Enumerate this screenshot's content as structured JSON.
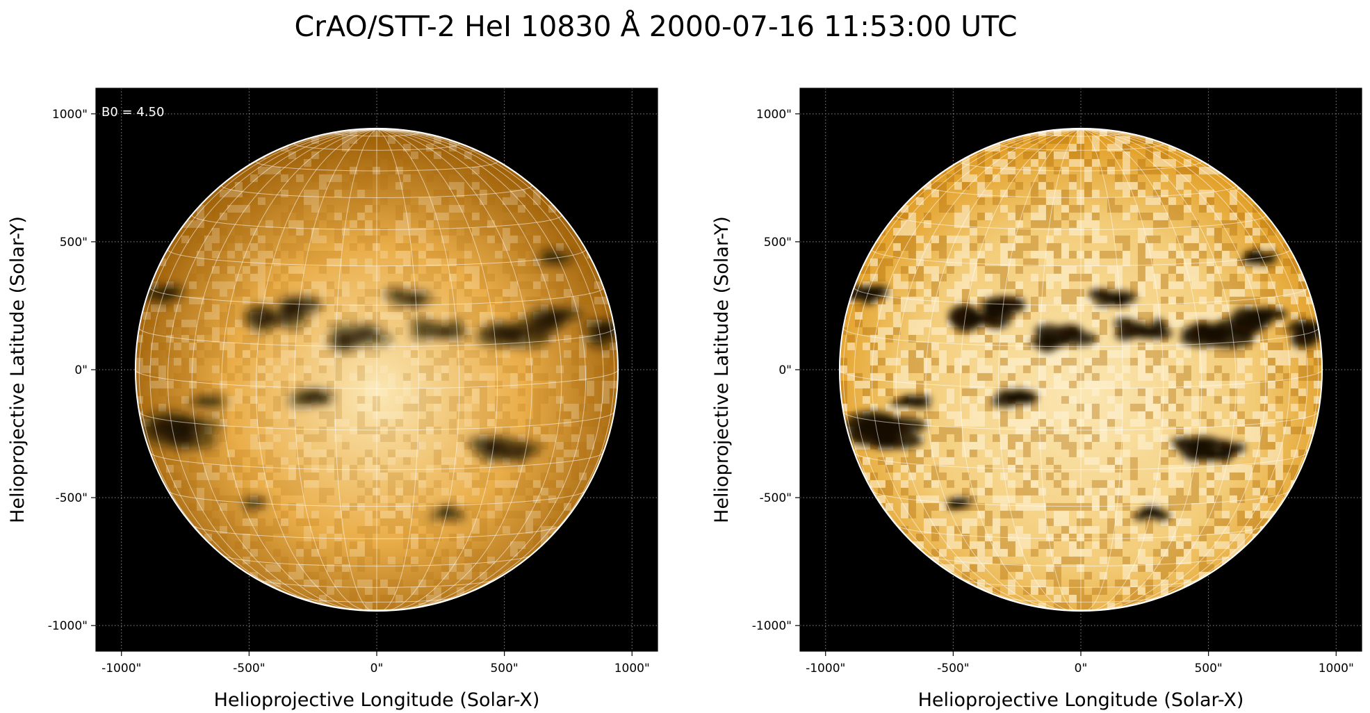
{
  "figure": {
    "title": "CrAO/STT-2 HeI 10830 Å 2000-07-16 11:53:00 UTC"
  },
  "palette": {
    "background": "#000000",
    "disk_bright": "#fbe7b4",
    "disk_mid": "#e09a1e",
    "disk_dark": "#9a5c05",
    "feature_dark": "#1a0c00",
    "limb": "#ffffff",
    "grid": "#ffffff"
  },
  "axes": {
    "xlabel": "Helioprojective Longitude (Solar-X)",
    "ylabel": "Helioprojective Latitude (Solar-Y)",
    "xticks": [
      "-1000\"",
      "-500\"",
      "0\"",
      "500\"",
      "1000\""
    ],
    "yticks": [
      "1000\"",
      "500\"",
      "0\"",
      "-500\"",
      "-1000\""
    ],
    "tick_values": [
      -1000,
      -500,
      0,
      500,
      1000
    ],
    "range_arcsec": [
      -1100,
      1100
    ],
    "grid": "dotted"
  },
  "panels": [
    {
      "name": "processed",
      "annotation": "B0 = 4.50",
      "contrast": "normal"
    },
    {
      "name": "enhanced",
      "annotation": "",
      "contrast": "high"
    }
  ],
  "solar_disk": {
    "radius_arcsec": 945,
    "b0_deg": 4.5,
    "grid_spacing_deg": 10
  },
  "dark_features": [
    {
      "lon": -25,
      "lat": 18,
      "size": 0.9
    },
    {
      "lon": -5,
      "lat": 12,
      "size": 0.7
    },
    {
      "lon": 15,
      "lat": 14,
      "size": 0.6
    },
    {
      "lon": 38,
      "lat": 13,
      "size": 0.9
    },
    {
      "lon": 50,
      "lat": 15,
      "size": 0.6
    },
    {
      "lon": -58,
      "lat": -12,
      "size": 1.0
    },
    {
      "lon": -45,
      "lat": -5,
      "size": 0.4
    },
    {
      "lon": -15,
      "lat": -2,
      "size": 0.5
    },
    {
      "lon": 8,
      "lat": 22,
      "size": 0.5
    },
    {
      "lon": 30,
      "lat": -15,
      "size": 0.6
    },
    {
      "lon": 40,
      "lat": -16,
      "size": 0.5
    },
    {
      "lon": 72,
      "lat": 10,
      "size": 0.6
    },
    {
      "lon": -70,
      "lat": 20,
      "size": 0.5
    },
    {
      "lon": -35,
      "lat": -30,
      "size": 0.3
    },
    {
      "lon": 20,
      "lat": -33,
      "size": 0.4
    },
    {
      "lon": 60,
      "lat": 30,
      "size": 0.4
    }
  ]
}
